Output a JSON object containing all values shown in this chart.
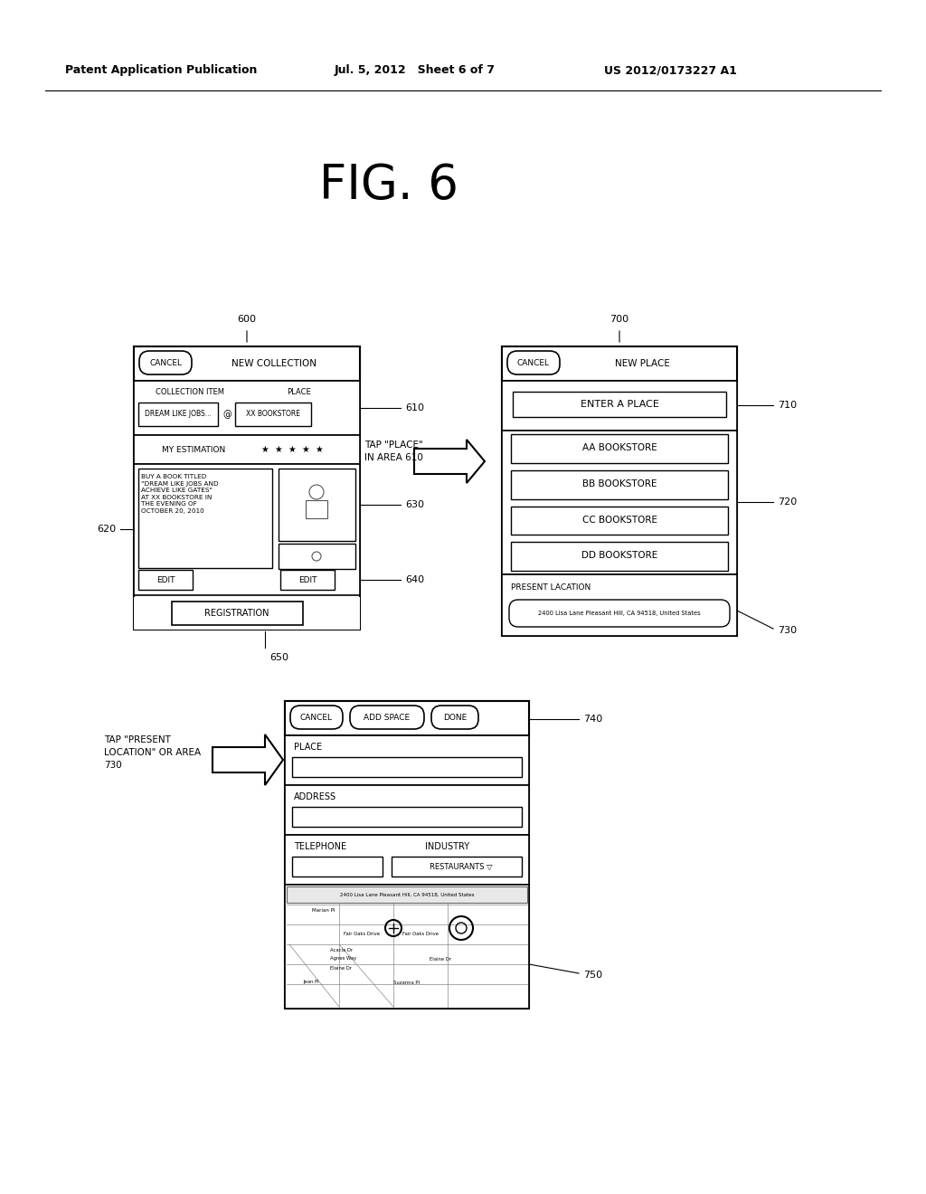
{
  "bg_color": "#ffffff",
  "header_left": "Patent Application Publication",
  "header_mid": "Jul. 5, 2012   Sheet 6 of 7",
  "header_right": "US 2012/0173227 A1",
  "fig_title": "FIG. 6",
  "panel600": {
    "bookstore_note": "BUY A BOOK TITLED\n\"DREAM LIKE JOBS AND\nACHIEVE LIKE GATES\"\nAT XX BOOKSTORE IN\nTHE EVENING OF\nOCTOBER 20, 2010"
  },
  "panel700": {
    "bookstores": [
      "AA BOOKSTORE",
      "BB BOOKSTORE",
      "CC BOOKSTORE",
      "DD BOOKSTORE"
    ]
  }
}
